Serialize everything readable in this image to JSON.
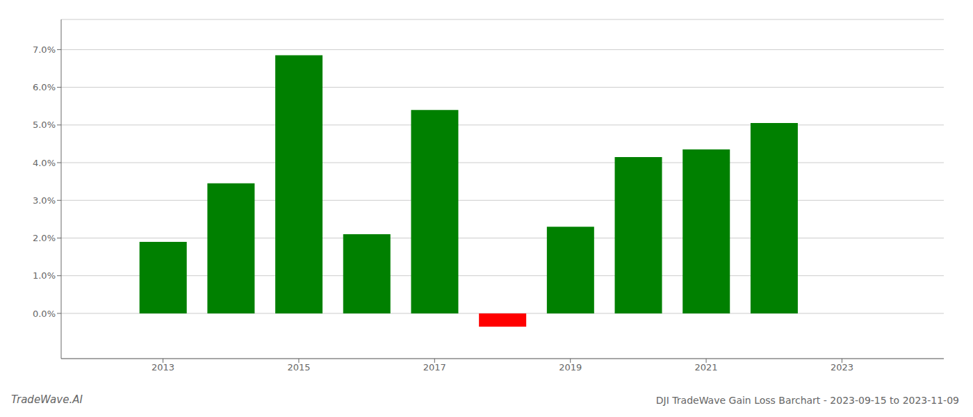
{
  "chart_data": {
    "type": "bar",
    "title": "DJI TradeWave Gain Loss Barchart - 2023-09-15 to 2023-11-09",
    "annotations": [
      "TradeWave.AI"
    ],
    "x": [
      2013,
      2014,
      2015,
      2016,
      2017,
      2018,
      2019,
      2020,
      2021,
      2022,
      2023
    ],
    "values": [
      0.019,
      0.0345,
      0.0685,
      0.021,
      0.054,
      -0.0035,
      0.023,
      0.0415,
      0.0435,
      0.0505,
      0.0
    ],
    "colors": [
      "#008000",
      "#008000",
      "#008000",
      "#008000",
      "#008000",
      "#ff0000",
      "#008000",
      "#008000",
      "#008000",
      "#008000",
      "#008000"
    ],
    "xlim": [
      2011.5,
      2024.5
    ],
    "xticks": [
      2013,
      2015,
      2017,
      2019,
      2021,
      2023
    ],
    "ylim": [
      -0.012,
      0.078
    ],
    "yticks": [
      {
        "value": 0.0,
        "label": "0.0%"
      },
      {
        "value": 0.01,
        "label": "1.0%"
      },
      {
        "value": 0.02,
        "label": "2.0%"
      },
      {
        "value": 0.03,
        "label": "3.0%"
      },
      {
        "value": 0.04,
        "label": "4.0%"
      },
      {
        "value": 0.05,
        "label": "5.0%"
      },
      {
        "value": 0.06,
        "label": "6.0%"
      },
      {
        "value": 0.07,
        "label": "7.0%"
      }
    ],
    "grid": true
  }
}
